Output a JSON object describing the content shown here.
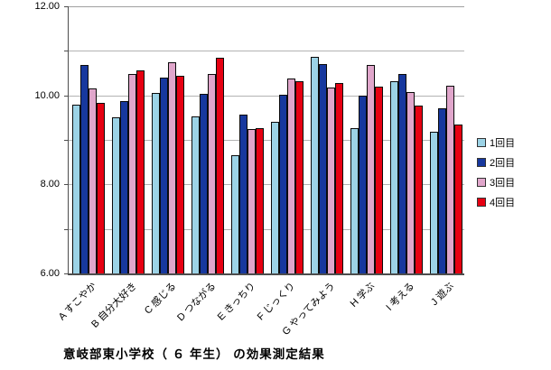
{
  "chart_data": {
    "type": "bar",
    "caption": "意岐部東小学校（ ６ 年生） の効果測定結果",
    "categories": [
      "A すこやか",
      "B 自分大好き",
      "C 感じる",
      "D つながる",
      "E きっちり",
      "F じっくり",
      "G やってみよう",
      "H 学ぶ",
      "I 考える",
      "J 遊ぶ"
    ],
    "series": [
      {
        "name": "1回目",
        "color": "#9cd3e6",
        "values": [
          9.79,
          9.51,
          10.06,
          9.53,
          8.65,
          9.41,
          10.86,
          9.27,
          10.32,
          9.19
        ]
      },
      {
        "name": "2回目",
        "color": "#17389e",
        "values": [
          10.69,
          9.87,
          10.4,
          10.03,
          9.56,
          10.02,
          10.7,
          10.0,
          10.49,
          9.7
        ]
      },
      {
        "name": "3回目",
        "color": "#e0a6cb",
        "values": [
          10.15,
          10.47,
          10.74,
          10.48,
          9.24,
          10.37,
          10.17,
          10.68,
          10.07,
          10.22
        ]
      },
      {
        "name": "4回目",
        "color": "#e60012",
        "values": [
          9.83,
          10.57,
          10.44,
          10.85,
          9.27,
          10.31,
          10.27,
          10.2,
          9.77,
          9.34
        ]
      }
    ],
    "ylim": [
      6,
      12
    ],
    "ytick_labels": [
      {
        "value": 12,
        "label": "12.00"
      },
      {
        "value": 10,
        "label": "10.00"
      },
      {
        "value": 8,
        "label": "8.00"
      },
      {
        "value": 6,
        "label": "6.00"
      }
    ],
    "gridline_values": [
      7,
      8,
      9,
      10,
      11,
      12
    ],
    "grid": "on",
    "legend_position": "right",
    "xlabel": "",
    "ylabel": ""
  }
}
